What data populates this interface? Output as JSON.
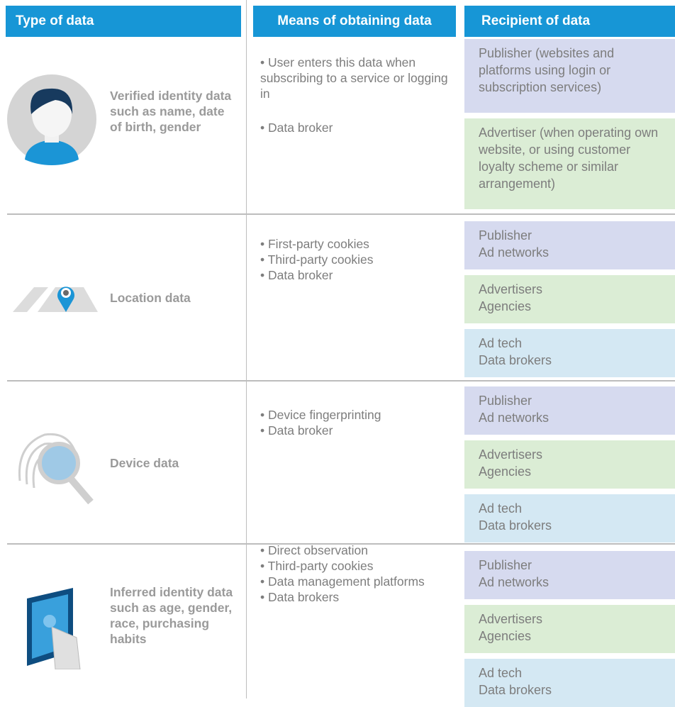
{
  "header": {
    "columns": [
      "Type of data",
      "Means of obtaining data",
      "Recipient of data"
    ]
  },
  "rows": [
    {
      "type": "Verified identity data such as name, date of birth, gender",
      "means": [
        "• User enters this data when subscribing to a service or logging in",
        "• Data broker"
      ],
      "recipients": [
        {
          "lines": [
            "Publisher (websites and platforms using login or subscription services)"
          ]
        },
        {
          "lines": [
            "Advertiser (when operating own website, or using customer loyalty scheme or similar arrangement)"
          ]
        }
      ]
    },
    {
      "type": "Location data",
      "means": [
        "• First-party cookies",
        "• Third-party cookies",
        "• Data broker"
      ],
      "recipients": [
        {
          "lines": [
            "Publisher",
            "Ad networks"
          ]
        },
        {
          "lines": [
            "Advertisers",
            "Agencies"
          ]
        },
        {
          "lines": [
            "Ad tech",
            "Data brokers"
          ]
        }
      ]
    },
    {
      "type": "Device data",
      "means": [
        "• Device fingerprinting",
        "• Data broker"
      ],
      "recipients": [
        {
          "lines": [
            "Publisher",
            "Ad networks"
          ]
        },
        {
          "lines": [
            "Advertisers",
            "Agencies"
          ]
        },
        {
          "lines": [
            "Ad tech",
            "Data brokers"
          ]
        }
      ]
    },
    {
      "type": "Inferred identity data such as age, gender, race, purchasing habits",
      "means": [
        "• Direct observation",
        "• Third-party cookies",
        "• Data management platforms",
        "• Data brokers"
      ],
      "recipients": [
        {
          "lines": [
            "Publisher",
            "Ad networks"
          ]
        },
        {
          "lines": [
            "Advertisers",
            "Agencies"
          ]
        },
        {
          "lines": [
            "Ad tech",
            "Data brokers"
          ]
        }
      ]
    }
  ]
}
